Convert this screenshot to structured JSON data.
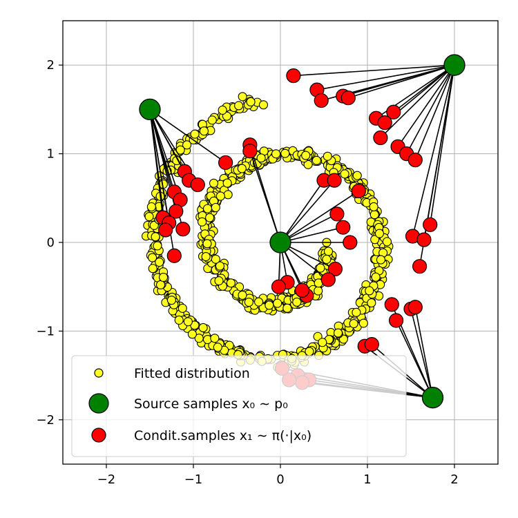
{
  "chart_data": {
    "type": "scatter",
    "title": "",
    "xlabel": "",
    "ylabel": "",
    "xlim": [
      -2.5,
      2.5
    ],
    "ylim": [
      -2.5,
      2.5
    ],
    "xticks": [
      {
        "value": -2,
        "label": "−2"
      },
      {
        "value": -1,
        "label": "−1"
      },
      {
        "value": 0,
        "label": "0"
      },
      {
        "value": 1,
        "label": "1"
      },
      {
        "value": 2,
        "label": "2"
      }
    ],
    "yticks": [
      {
        "value": 2,
        "label": "2"
      },
      {
        "value": 1,
        "label": "1"
      },
      {
        "value": 0,
        "label": "0"
      },
      {
        "value": -1,
        "label": "−1"
      },
      {
        "value": -2,
        "label": "−2"
      }
    ],
    "grid": true,
    "legend_position": "lower-left",
    "legend": [
      {
        "marker": "fitted",
        "label": "Fitted distribution"
      },
      {
        "marker": "source",
        "label": "Source samples x₀ ∼ p₀"
      },
      {
        "marker": "cond",
        "label": "Condit.samples x₁ ∼ π(·|x₀)"
      }
    ],
    "colors": {
      "fitted": "#ffff1e",
      "source": "#008000",
      "conditional": "#ff0000",
      "edge": "#000000",
      "grid": "#b0b0b0"
    },
    "source_samples": [
      {
        "x": 0.0,
        "y": 0.0
      },
      {
        "x": -1.5,
        "y": 1.5
      },
      {
        "x": 2.0,
        "y": 2.0
      },
      {
        "x": 1.75,
        "y": -1.75
      }
    ],
    "conditional_samples": [
      {
        "source": 0,
        "points": [
          [
            0.5,
            0.7
          ],
          [
            0.62,
            0.7
          ],
          [
            0.9,
            0.58
          ],
          [
            0.65,
            0.32
          ],
          [
            0.72,
            0.17
          ],
          [
            0.8,
            0.0
          ],
          [
            0.63,
            -0.3
          ],
          [
            0.55,
            -0.42
          ],
          [
            0.3,
            -0.6
          ],
          [
            0.25,
            -0.54
          ],
          [
            0.08,
            -0.45
          ],
          [
            -0.02,
            -0.5
          ],
          [
            -0.35,
            1.1
          ],
          [
            -0.35,
            1.03
          ]
        ]
      },
      {
        "source": 1,
        "points": [
          [
            -1.1,
            0.8
          ],
          [
            -1.05,
            0.7
          ],
          [
            -0.95,
            0.65
          ],
          [
            -1.22,
            0.57
          ],
          [
            -1.15,
            0.48
          ],
          [
            -1.2,
            0.35
          ],
          [
            -1.35,
            0.28
          ],
          [
            -1.28,
            0.22
          ],
          [
            -1.32,
            0.14
          ],
          [
            -1.12,
            0.15
          ],
          [
            -1.22,
            -0.15
          ],
          [
            -0.63,
            0.9
          ]
        ]
      },
      {
        "source": 2,
        "points": [
          [
            0.15,
            1.88
          ],
          [
            0.42,
            1.72
          ],
          [
            0.47,
            1.6
          ],
          [
            0.72,
            1.65
          ],
          [
            0.78,
            1.63
          ],
          [
            1.1,
            1.4
          ],
          [
            1.2,
            1.35
          ],
          [
            1.15,
            1.18
          ],
          [
            1.3,
            1.47
          ],
          [
            1.35,
            1.08
          ],
          [
            1.45,
            1.0
          ],
          [
            1.55,
            0.93
          ],
          [
            1.72,
            0.2
          ],
          [
            1.52,
            0.07
          ],
          [
            1.65,
            0.03
          ],
          [
            1.6,
            -0.27
          ]
        ]
      },
      {
        "source": 3,
        "points": [
          [
            1.28,
            -0.7
          ],
          [
            1.33,
            -0.88
          ],
          [
            1.5,
            -0.75
          ],
          [
            1.55,
            -0.73
          ],
          [
            0.97,
            -1.17
          ],
          [
            1.05,
            -1.15
          ],
          [
            0.2,
            -1.5
          ],
          [
            0.33,
            -1.55
          ],
          [
            0.25,
            -1.58
          ],
          [
            0.1,
            -1.55
          ],
          [
            0.02,
            -1.42
          ]
        ]
      }
    ]
  }
}
